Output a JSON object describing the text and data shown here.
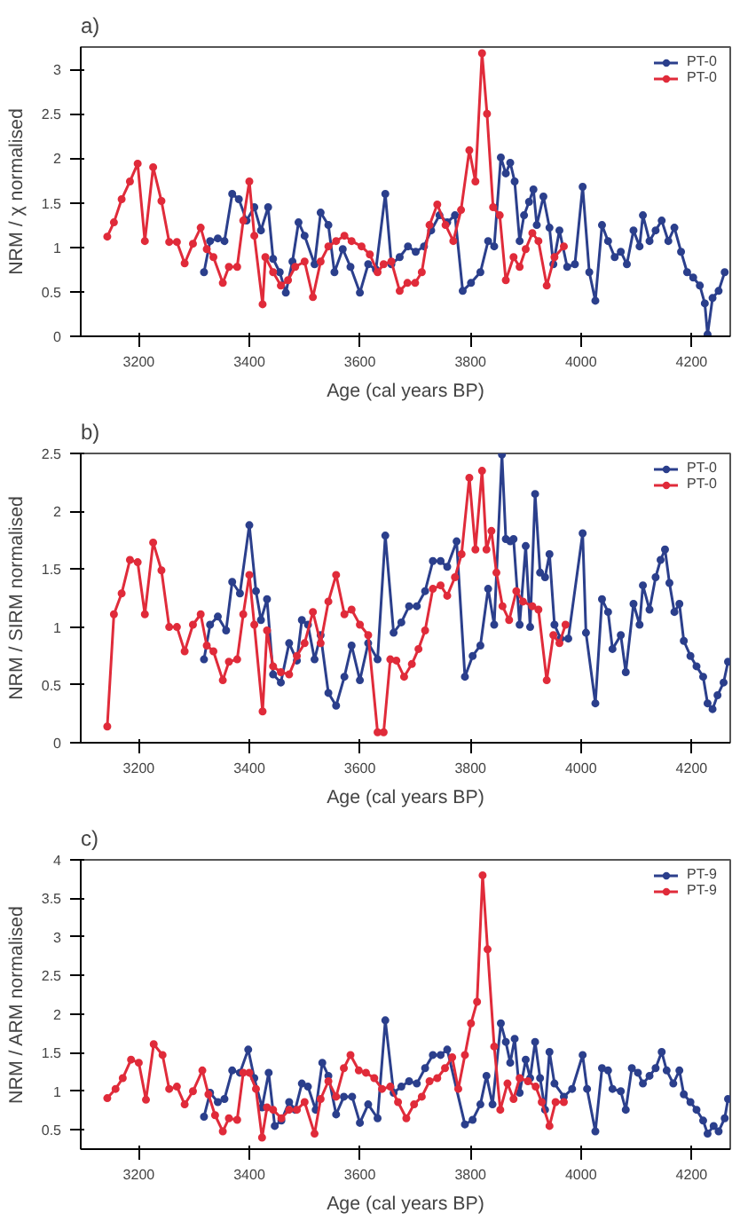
{
  "chart_data": [
    {
      "type": "line",
      "title": "a)",
      "xlabel": "Age (cal years BP)",
      "ylabel": "NRM / χ normalised",
      "xlim": [
        3095,
        4270
      ],
      "xticks": [
        3200,
        3400,
        3600,
        3800,
        4000,
        4200
      ],
      "ylim": [
        0,
        3.25
      ],
      "yticks": [
        0,
        0.5,
        1,
        1.5,
        2,
        2.5,
        3
      ],
      "grid": false,
      "legend": "top right",
      "marker": "circle",
      "line_style": "solid",
      "series": [
        {
          "name": "PT-0",
          "color": "#2b3f8c",
          "x": [
            3318,
            3329,
            3343,
            3355,
            3369,
            3381,
            3395,
            3409,
            3421,
            3434,
            3443,
            3455,
            3466,
            3478,
            3489,
            3500,
            3518,
            3529,
            3543,
            3554,
            3569,
            3583,
            3600,
            3615,
            3629,
            3646,
            3657,
            3672,
            3687,
            3701,
            3716,
            3729,
            3744,
            3758,
            3772,
            3786,
            3801,
            3818,
            3832,
            3843,
            3855,
            3864,
            3872,
            3880,
            3889,
            3897,
            3906,
            3914,
            3920,
            3932,
            3943,
            3950,
            3961,
            3975,
            3989,
            4003,
            4015,
            4026,
            4038,
            4049,
            4061,
            4072,
            4083,
            4095,
            4106,
            4112,
            4124,
            4135,
            4146,
            4158,
            4169,
            4181,
            4192,
            4203,
            4215,
            4224,
            4229,
            4238,
            4249,
            4260
          ],
          "values": [
            0.72,
            1.07,
            1.1,
            1.07,
            1.6,
            1.54,
            1.3,
            1.45,
            1.19,
            1.45,
            0.87,
            0.72,
            0.49,
            0.84,
            1.28,
            1.13,
            0.81,
            1.39,
            1.25,
            0.72,
            0.98,
            0.78,
            0.49,
            0.81,
            0.75,
            1.6,
            0.81,
            0.89,
            1.01,
            0.95,
            1.01,
            1.19,
            1.36,
            1.28,
            1.36,
            0.51,
            0.6,
            0.72,
            1.07,
            1.01,
            2.01,
            1.83,
            1.95,
            1.74,
            1.07,
            1.36,
            1.51,
            1.65,
            1.25,
            1.57,
            1.22,
            0.81,
            1.19,
            0.78,
            0.81,
            1.68,
            0.72,
            0.4,
            1.25,
            1.07,
            0.89,
            0.95,
            0.81,
            1.19,
            1.01,
            1.36,
            1.07,
            1.19,
            1.3,
            1.07,
            1.22,
            0.95,
            0.72,
            0.66,
            0.57,
            0.37,
            0.02,
            0.43,
            0.51,
            0.72
          ]
        },
        {
          "name": "PT-0",
          "color": "#e02b3a",
          "x": [
            3143,
            3155,
            3169,
            3184,
            3198,
            3211,
            3226,
            3241,
            3255,
            3269,
            3283,
            3298,
            3312,
            3323,
            3335,
            3352,
            3363,
            3378,
            3389,
            3400,
            3409,
            3424,
            3429,
            3443,
            3457,
            3470,
            3483,
            3500,
            3515,
            3529,
            3543,
            3557,
            3572,
            3585,
            3603,
            3618,
            3632,
            3643,
            3657,
            3672,
            3686,
            3700,
            3712,
            3726,
            3740,
            3755,
            3769,
            3783,
            3798,
            3809,
            3821,
            3830,
            3841,
            3853,
            3864,
            3878,
            3889,
            3900,
            3912,
            3923,
            3938,
            3952,
            3969
          ],
          "values": [
            1.12,
            1.28,
            1.54,
            1.74,
            1.94,
            1.07,
            1.9,
            1.52,
            1.06,
            1.06,
            0.82,
            1.04,
            1.22,
            0.98,
            0.89,
            0.6,
            0.78,
            0.78,
            1.3,
            1.74,
            1.13,
            0.36,
            0.89,
            0.72,
            0.57,
            0.63,
            0.78,
            0.84,
            0.44,
            0.84,
            1.01,
            1.07,
            1.13,
            1.07,
            1.01,
            0.92,
            0.72,
            0.81,
            0.84,
            0.51,
            0.6,
            0.6,
            0.72,
            1.25,
            1.48,
            1.25,
            1.07,
            1.42,
            2.09,
            1.74,
            3.18,
            2.5,
            1.45,
            1.36,
            0.63,
            0.89,
            0.78,
            0.98,
            1.16,
            1.07,
            0.57,
            0.89,
            1.01
          ]
        }
      ]
    },
    {
      "type": "line",
      "title": "b)",
      "xlabel": "Age (cal years BP)",
      "ylabel": "NRM / SIRM normalised",
      "xlim": [
        3095,
        4270
      ],
      "xticks": [
        3200,
        3400,
        3600,
        3800,
        4000,
        4200
      ],
      "ylim": [
        0,
        2.5
      ],
      "yticks": [
        0,
        0.5,
        1,
        1.5,
        2,
        2.5
      ],
      "grid": false,
      "legend": "top right",
      "marker": "circle",
      "line_style": "solid",
      "series": [
        {
          "name": "PT-0",
          "color": "#2b3f8c",
          "x": [
            3318,
            3329,
            3343,
            3358,
            3369,
            3383,
            3400,
            3412,
            3421,
            3432,
            3443,
            3457,
            3472,
            3486,
            3495,
            3506,
            3518,
            3529,
            3543,
            3557,
            3572,
            3585,
            3600,
            3615,
            3632,
            3646,
            3661,
            3675,
            3689,
            3703,
            3718,
            3732,
            3746,
            3758,
            3775,
            3790,
            3804,
            3818,
            3832,
            3843,
            3857,
            3864,
            3872,
            3878,
            3889,
            3900,
            3908,
            3917,
            3926,
            3935,
            3943,
            3952,
            3963,
            3977,
            4003,
            4009,
            4026,
            4038,
            4049,
            4057,
            4072,
            4081,
            4095,
            4106,
            4112,
            4124,
            4135,
            4144,
            4152,
            4160,
            4169,
            4178,
            4186,
            4198,
            4209,
            4221,
            4229,
            4238,
            4247,
            4258,
            4266
          ],
          "values": [
            0.72,
            1.02,
            1.09,
            0.97,
            1.39,
            1.29,
            1.88,
            1.31,
            1.06,
            1.24,
            0.59,
            0.52,
            0.86,
            0.71,
            1.06,
            1.02,
            0.72,
            0.93,
            0.43,
            0.32,
            0.57,
            0.84,
            0.54,
            0.86,
            0.72,
            1.79,
            0.95,
            1.04,
            1.18,
            1.18,
            1.31,
            1.57,
            1.57,
            1.52,
            1.74,
            0.57,
            0.75,
            0.84,
            1.33,
            1.02,
            2.49,
            1.76,
            1.74,
            1.76,
            1.02,
            1.7,
            1.0,
            2.15,
            1.47,
            1.43,
            1.63,
            1.02,
            0.9,
            0.9,
            1.81,
            0.95,
            0.34,
            1.24,
            1.13,
            0.81,
            0.93,
            0.61,
            1.2,
            1.02,
            1.36,
            1.15,
            1.43,
            1.58,
            1.67,
            1.38,
            1.13,
            1.2,
            0.88,
            0.75,
            0.66,
            0.57,
            0.34,
            0.29,
            0.41,
            0.52,
            0.7
          ]
        },
        {
          "name": "PT-0",
          "color": "#e02b3a",
          "x": [
            3143,
            3155,
            3169,
            3184,
            3198,
            3211,
            3226,
            3241,
            3255,
            3269,
            3283,
            3298,
            3312,
            3323,
            3335,
            3352,
            3363,
            3378,
            3389,
            3400,
            3409,
            3424,
            3432,
            3443,
            3457,
            3472,
            3486,
            3500,
            3515,
            3529,
            3543,
            3557,
            3572,
            3585,
            3600,
            3615,
            3632,
            3643,
            3655,
            3666,
            3680,
            3694,
            3706,
            3718,
            3732,
            3746,
            3758,
            3772,
            3784,
            3798,
            3809,
            3821,
            3829,
            3838,
            3847,
            3858,
            3870,
            3883,
            3895,
            3912,
            3923,
            3938,
            3950,
            3961,
            3972
          ],
          "values": [
            0.14,
            1.11,
            1.29,
            1.58,
            1.56,
            1.11,
            1.73,
            1.49,
            1.0,
            1.0,
            0.79,
            1.02,
            1.11,
            0.84,
            0.79,
            0.54,
            0.7,
            0.72,
            1.11,
            1.45,
            1.02,
            0.27,
            0.97,
            0.66,
            0.61,
            0.59,
            0.75,
            0.86,
            1.13,
            0.86,
            1.22,
            1.45,
            1.11,
            1.15,
            1.02,
            0.93,
            0.09,
            0.09,
            0.72,
            0.71,
            0.57,
            0.68,
            0.81,
            0.97,
            1.33,
            1.36,
            1.27,
            1.43,
            1.63,
            2.29,
            1.67,
            2.35,
            1.67,
            1.83,
            1.47,
            1.18,
            1.06,
            1.31,
            1.22,
            1.18,
            1.15,
            0.54,
            0.93,
            0.86,
            1.02
          ]
        }
      ]
    },
    {
      "type": "line",
      "title": "c)",
      "xlabel": "Age (cal years BP)",
      "ylabel": "NRM / ARM normalised",
      "xlim": [
        3095,
        4270
      ],
      "xticks": [
        3200,
        3400,
        3600,
        3800,
        4000,
        4200
      ],
      "ylim": [
        0.25,
        4
      ],
      "yticks": [
        0.5,
        1,
        1.5,
        2,
        2.5,
        3,
        3.5,
        4
      ],
      "grid": false,
      "legend": "top right",
      "marker": "circle",
      "line_style": "solid",
      "series": [
        {
          "name": "PT-9",
          "color": "#2b3f8c",
          "x": [
            3318,
            3329,
            3343,
            3355,
            3369,
            3383,
            3398,
            3409,
            3423,
            3435,
            3446,
            3458,
            3472,
            3483,
            3495,
            3506,
            3520,
            3532,
            3543,
            3557,
            3571,
            3586,
            3600,
            3615,
            3632,
            3646,
            3661,
            3675,
            3689,
            3703,
            3718,
            3732,
            3746,
            3758,
            3790,
            3804,
            3818,
            3829,
            3840,
            3855,
            3864,
            3872,
            3880,
            3889,
            3900,
            3908,
            3917,
            3926,
            3935,
            3943,
            3952,
            3969,
            3984,
            4003,
            4011,
            4026,
            4038,
            4049,
            4057,
            4072,
            4081,
            4092,
            4103,
            4112,
            4124,
            4135,
            4146,
            4155,
            4167,
            4178,
            4186,
            4198,
            4209,
            4221,
            4229,
            4240,
            4249,
            4260,
            4266
          ],
          "values": [
            0.67,
            0.98,
            0.86,
            0.9,
            1.27,
            1.24,
            1.54,
            1.17,
            0.79,
            1.24,
            0.55,
            0.62,
            0.86,
            0.76,
            1.1,
            1.06,
            0.76,
            1.37,
            1.2,
            0.7,
            0.93,
            0.93,
            0.59,
            0.83,
            0.65,
            1.92,
            0.98,
            1.06,
            1.13,
            1.1,
            1.3,
            1.47,
            1.47,
            1.54,
            0.57,
            0.63,
            0.83,
            1.2,
            0.83,
            1.88,
            1.64,
            1.37,
            1.68,
            0.98,
            1.41,
            1.17,
            1.64,
            1.17,
            0.76,
            1.51,
            1.1,
            0.93,
            1.03,
            1.47,
            1.03,
            0.48,
            1.3,
            1.27,
            1.03,
            1.0,
            0.76,
            1.3,
            1.24,
            1.1,
            1.2,
            1.3,
            1.51,
            1.27,
            1.1,
            1.27,
            0.96,
            0.86,
            0.76,
            0.62,
            0.45,
            0.55,
            0.48,
            0.65,
            0.9
          ]
        },
        {
          "name": "PT-9",
          "color": "#e02b3a",
          "x": [
            3143,
            3158,
            3171,
            3186,
            3200,
            3213,
            3227,
            3243,
            3255,
            3269,
            3283,
            3298,
            3315,
            3326,
            3338,
            3352,
            3363,
            3378,
            3389,
            3400,
            3412,
            3423,
            3432,
            3443,
            3458,
            3472,
            3486,
            3500,
            3518,
            3529,
            3543,
            3557,
            3571,
            3583,
            3598,
            3611,
            3626,
            3640,
            3655,
            3669,
            3684,
            3698,
            3712,
            3726,
            3740,
            3754,
            3767,
            3778,
            3790,
            3801,
            3812,
            3822,
            3831,
            3843,
            3854,
            3867,
            3878,
            3889,
            3904,
            3918,
            3929,
            3943,
            3954,
            3969
          ],
          "values": [
            0.91,
            1.03,
            1.17,
            1.41,
            1.37,
            0.89,
            1.61,
            1.47,
            1.03,
            1.06,
            0.83,
            1.0,
            1.27,
            0.96,
            0.69,
            0.48,
            0.65,
            0.63,
            1.24,
            1.24,
            1.03,
            0.4,
            0.79,
            0.76,
            0.65,
            0.76,
            0.76,
            0.86,
            0.45,
            0.9,
            1.13,
            0.93,
            1.3,
            1.47,
            1.27,
            1.24,
            1.17,
            1.03,
            1.06,
            0.86,
            0.65,
            0.83,
            0.93,
            1.13,
            1.17,
            1.3,
            1.44,
            1.03,
            1.47,
            1.88,
            2.16,
            3.8,
            2.84,
            1.58,
            0.76,
            1.1,
            0.9,
            1.17,
            1.13,
            1.06,
            0.86,
            0.55,
            0.86,
            0.86
          ]
        }
      ]
    }
  ]
}
